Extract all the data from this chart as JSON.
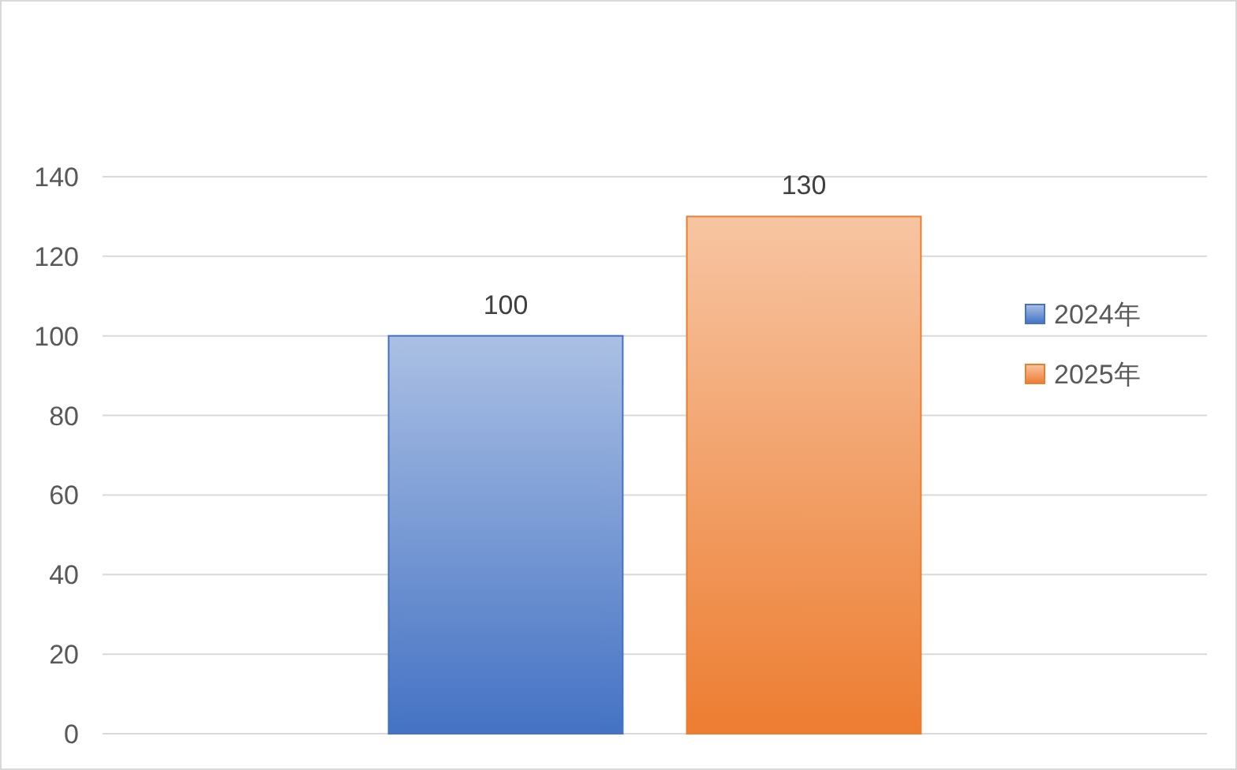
{
  "chart_data": {
    "type": "bar",
    "categories": [
      null
    ],
    "series": [
      {
        "name": "2024年",
        "color": "#4472c4",
        "values": [
          100
        ]
      },
      {
        "name": "2025年",
        "color": "#ed7d31",
        "values": [
          130
        ]
      }
    ],
    "ylim": [
      0,
      140
    ],
    "yticks": [
      0,
      20,
      40,
      60,
      80,
      100,
      120,
      140
    ],
    "grid": "y",
    "legend": "right",
    "data_labels": true
  }
}
